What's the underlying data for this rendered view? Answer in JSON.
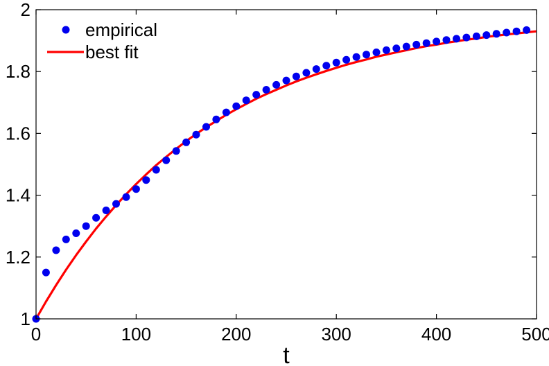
{
  "chart_data": {
    "type": "scatter",
    "title": "",
    "xlabel": "t",
    "ylabel": "",
    "xlim": [
      0,
      500
    ],
    "ylim": [
      1,
      2
    ],
    "xticks": [
      0,
      100,
      200,
      300,
      400,
      500
    ],
    "xtick_labels": [
      "0",
      "100",
      "200",
      "300",
      "400",
      "500"
    ],
    "yticks": [
      1,
      1.2,
      1.4,
      1.6,
      1.8,
      2
    ],
    "ytick_labels": [
      "1",
      "1.2",
      "1.4",
      "1.6",
      "1.8",
      "2"
    ],
    "grid": false,
    "legend_position": "top-left",
    "series": [
      {
        "name": "empirical",
        "kind": "markers",
        "color": "#0000ee",
        "x": [
          0,
          10,
          20,
          30,
          40,
          50,
          60,
          70,
          80,
          90,
          100,
          110,
          120,
          130,
          140,
          150,
          160,
          170,
          180,
          190,
          200,
          210,
          220,
          230,
          240,
          250,
          260,
          270,
          280,
          290,
          300,
          310,
          320,
          330,
          340,
          350,
          360,
          370,
          380,
          390,
          400,
          410,
          420,
          430,
          440,
          450,
          460,
          470,
          480,
          490
        ],
        "y": [
          1.0,
          1.15,
          1.222,
          1.257,
          1.277,
          1.3,
          1.327,
          1.351,
          1.372,
          1.394,
          1.42,
          1.449,
          1.482,
          1.513,
          1.543,
          1.571,
          1.596,
          1.621,
          1.645,
          1.668,
          1.688,
          1.707,
          1.725,
          1.741,
          1.757,
          1.771,
          1.784,
          1.796,
          1.808,
          1.819,
          1.829,
          1.838,
          1.847,
          1.855,
          1.862,
          1.869,
          1.875,
          1.881,
          1.887,
          1.892,
          1.897,
          1.902,
          1.906,
          1.91,
          1.914,
          1.918,
          1.922,
          1.926,
          1.93,
          1.934
        ]
      },
      {
        "name": "best fit",
        "kind": "line",
        "color": "#ff0000",
        "x": [
          0,
          10,
          20,
          30,
          40,
          50,
          60,
          70,
          80,
          90,
          100,
          110,
          120,
          130,
          140,
          150,
          160,
          170,
          180,
          190,
          200,
          210,
          220,
          230,
          240,
          250,
          260,
          270,
          280,
          290,
          300,
          310,
          320,
          330,
          340,
          350,
          360,
          370,
          380,
          390,
          400,
          410,
          420,
          430,
          440,
          450,
          460,
          470,
          480,
          490,
          500
        ],
        "y": [
          1.0,
          1.056,
          1.109,
          1.159,
          1.206,
          1.25,
          1.292,
          1.331,
          1.368,
          1.403,
          1.436,
          1.467,
          1.497,
          1.524,
          1.55,
          1.575,
          1.598,
          1.62,
          1.64,
          1.66,
          1.678,
          1.695,
          1.712,
          1.727,
          1.741,
          1.755,
          1.768,
          1.78,
          1.791,
          1.802,
          1.812,
          1.822,
          1.831,
          1.839,
          1.848,
          1.855,
          1.862,
          1.869,
          1.876,
          1.882,
          1.887,
          1.893,
          1.898,
          1.903,
          1.907,
          1.912,
          1.916,
          1.92,
          1.923,
          1.927,
          1.93
        ]
      }
    ]
  }
}
